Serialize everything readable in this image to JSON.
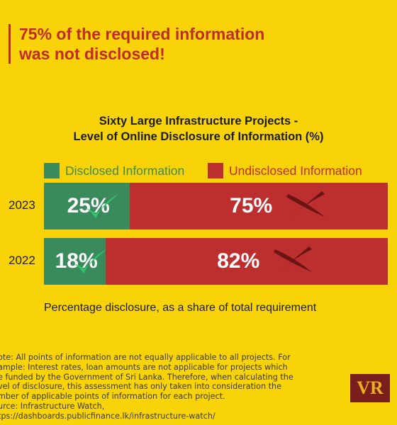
{
  "headline": {
    "text": "75% of the required information\nwas not disclosed!"
  },
  "colors": {
    "background": "#f8d30a",
    "disclosed": "#3a8b5c",
    "undisclosed": "#bd2f2f",
    "headline": "#c02b2b",
    "check": "#2ec86a",
    "cross": "#6b1414"
  },
  "chart_data": {
    "type": "bar",
    "orientation": "horizontal",
    "stacked": true,
    "title": "Sixty Large Infrastructure Projects -\nLevel of Online Disclosure of Information (%)",
    "xlabel": "Percentage disclosure, as a share of total requirement",
    "ylabel": "",
    "categories": [
      "2023",
      "2022"
    ],
    "xlim": [
      0,
      100
    ],
    "legend": "top",
    "grid": false,
    "series": [
      {
        "name": "Disclosed Information",
        "values": [
          25,
          18
        ],
        "labels": [
          "25%",
          "18%"
        ],
        "marker_icon": "check-icon"
      },
      {
        "name": "Undisclosed Information",
        "values": [
          75,
          82
        ],
        "labels": [
          "75%",
          "82%"
        ],
        "marker_icon": "cross-icon"
      }
    ]
  },
  "footnote": {
    "lines": [
      "ote: All points of information are not equally applicable to all projects. For",
      "ample: Interest rates, loan amounts are not applicable for projects which",
      "e funded by the Government of Sri Lanka. Therefore, when calculating the",
      "vel of disclosure, this assessment has only taken into consideration the",
      "mber of applicable points of information for each project.",
      "urce: Infrastructure Watch,",
      "tps://dashboards.publicfinance.lk/infrastructure-watch/"
    ]
  },
  "logo": {
    "text": "VR"
  }
}
